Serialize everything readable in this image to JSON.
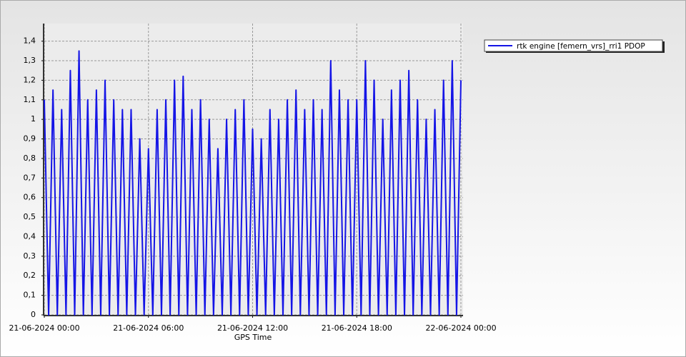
{
  "chart_data": {
    "type": "line",
    "xlabel": "GPS Time",
    "x": [
      "21-06-2024 00:00",
      "21-06-2024 00:15",
      "21-06-2024 00:30",
      "21-06-2024 00:45",
      "21-06-2024 01:00",
      "21-06-2024 01:15",
      "21-06-2024 01:30",
      "21-06-2024 01:45",
      "21-06-2024 02:00",
      "21-06-2024 02:15",
      "21-06-2024 02:30",
      "21-06-2024 02:45",
      "21-06-2024 03:00",
      "21-06-2024 03:15",
      "21-06-2024 03:30",
      "21-06-2024 03:45",
      "21-06-2024 04:00",
      "21-06-2024 04:15",
      "21-06-2024 04:30",
      "21-06-2024 04:45",
      "21-06-2024 05:00",
      "21-06-2024 05:15",
      "21-06-2024 05:30",
      "21-06-2024 05:45",
      "21-06-2024 06:00",
      "21-06-2024 06:15",
      "21-06-2024 06:30",
      "21-06-2024 06:45",
      "21-06-2024 07:00",
      "21-06-2024 07:15",
      "21-06-2024 07:30",
      "21-06-2024 07:45",
      "21-06-2024 08:00",
      "21-06-2024 08:15",
      "21-06-2024 08:30",
      "21-06-2024 08:45",
      "21-06-2024 09:00",
      "21-06-2024 09:15",
      "21-06-2024 09:30",
      "21-06-2024 09:45",
      "21-06-2024 10:00",
      "21-06-2024 10:15",
      "21-06-2024 10:30",
      "21-06-2024 10:45",
      "21-06-2024 11:00",
      "21-06-2024 11:15",
      "21-06-2024 11:30",
      "21-06-2024 11:45",
      "21-06-2024 12:00",
      "21-06-2024 12:15",
      "21-06-2024 12:30",
      "21-06-2024 12:45",
      "21-06-2024 13:00",
      "21-06-2024 13:15",
      "21-06-2024 13:30",
      "21-06-2024 13:45",
      "21-06-2024 14:00",
      "21-06-2024 14:15",
      "21-06-2024 14:30",
      "21-06-2024 14:45",
      "21-06-2024 15:00",
      "21-06-2024 15:15",
      "21-06-2024 15:30",
      "21-06-2024 15:45",
      "21-06-2024 16:00",
      "21-06-2024 16:15",
      "21-06-2024 16:30",
      "21-06-2024 16:45",
      "21-06-2024 17:00",
      "21-06-2024 17:15",
      "21-06-2024 17:30",
      "21-06-2024 17:45",
      "21-06-2024 18:00",
      "21-06-2024 18:15",
      "21-06-2024 18:30",
      "21-06-2024 18:45",
      "21-06-2024 19:00",
      "21-06-2024 19:15",
      "21-06-2024 19:30",
      "21-06-2024 19:45",
      "21-06-2024 20:00",
      "21-06-2024 20:15",
      "21-06-2024 20:30",
      "21-06-2024 20:45",
      "21-06-2024 21:00",
      "21-06-2024 21:15",
      "21-06-2024 21:30",
      "21-06-2024 21:45",
      "21-06-2024 22:00",
      "21-06-2024 22:15",
      "21-06-2024 22:30",
      "21-06-2024 22:45",
      "21-06-2024 23:00",
      "21-06-2024 23:15",
      "21-06-2024 23:30",
      "21-06-2024 23:45",
      "22-06-2024 00:00"
    ],
    "series": [
      {
        "name": "rtk engine [femern_vrs]_rri1 PDOP",
        "color": "#1414e6",
        "values": [
          1.1,
          0,
          1.15,
          0,
          1.05,
          0,
          1.25,
          0,
          1.35,
          0,
          1.1,
          0,
          1.15,
          0,
          1.2,
          0,
          1.1,
          0,
          1.05,
          0,
          1.05,
          0,
          0.9,
          0,
          0.85,
          0,
          1.05,
          0,
          1.1,
          0,
          1.2,
          0,
          1.22,
          0,
          1.05,
          0,
          1.1,
          0,
          1.0,
          0,
          0.85,
          0,
          1.0,
          0,
          1.05,
          0,
          1.1,
          0,
          0.95,
          0,
          0.9,
          0,
          1.05,
          0,
          1.0,
          0,
          1.1,
          0,
          1.15,
          0,
          1.05,
          0,
          1.1,
          0,
          1.05,
          0,
          1.3,
          0,
          1.15,
          0,
          1.1,
          0,
          1.1,
          0,
          1.3,
          0,
          1.2,
          0,
          1.0,
          0,
          1.15,
          0,
          1.2,
          0,
          1.25,
          0,
          1.1,
          0,
          1.0,
          0,
          1.05,
          0,
          1.2,
          0,
          1.3,
          0,
          1.2
        ]
      }
    ],
    "xlim": [
      "21-06-2024 00:00",
      "22-06-2024 00:00"
    ],
    "xticks": [
      "21-06-2024 00:00",
      "21-06-2024 06:00",
      "21-06-2024 12:00",
      "21-06-2024 18:00",
      "22-06-2024 00:00"
    ],
    "ylim": [
      0,
      1.49
    ],
    "yticks": [
      0,
      {
        "value": 0.1,
        "label": "0,1"
      },
      {
        "value": 0.2,
        "label": "0,2"
      },
      {
        "value": 0.3,
        "label": "0,3"
      },
      {
        "value": 0.4,
        "label": "0,4"
      },
      {
        "value": 0.5,
        "label": "0,5"
      },
      {
        "value": 0.6,
        "label": "0,6"
      },
      {
        "value": 0.7,
        "label": "0,7"
      },
      {
        "value": 0.8,
        "label": "0,8"
      },
      {
        "value": 0.9,
        "label": "0,9"
      },
      1,
      {
        "value": 1.1,
        "label": "1,1"
      },
      {
        "value": 1.2,
        "label": "1,2"
      },
      {
        "value": 1.3,
        "label": "1,3"
      },
      {
        "value": 1.4,
        "label": "1,4"
      }
    ],
    "grid": true
  }
}
